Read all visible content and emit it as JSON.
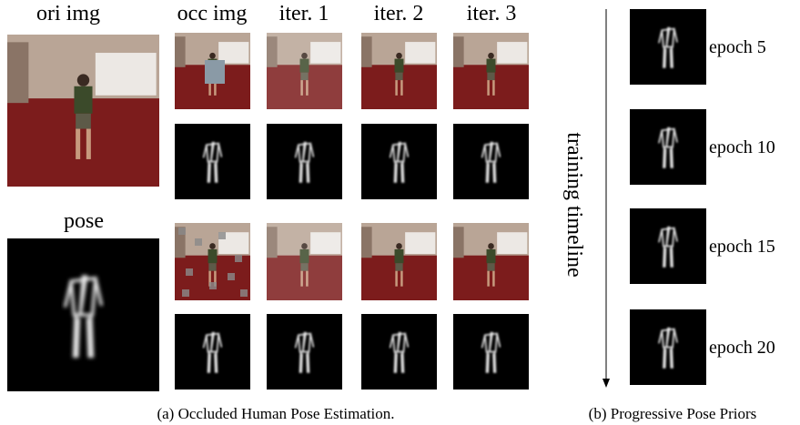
{
  "left_panel": {
    "ori_label": "ori img",
    "pose_label": "pose",
    "column_headers": [
      "occ img",
      "iter. 1",
      "iter. 2",
      "iter. 3"
    ],
    "caption": "(a) Occluded Human Pose Estimation."
  },
  "right_panel": {
    "axis_label": "training timeline",
    "epochs": [
      "epoch 5",
      "epoch 10",
      "epoch 15",
      "epoch 20"
    ],
    "caption": "(b) Progressive Pose Priors"
  }
}
